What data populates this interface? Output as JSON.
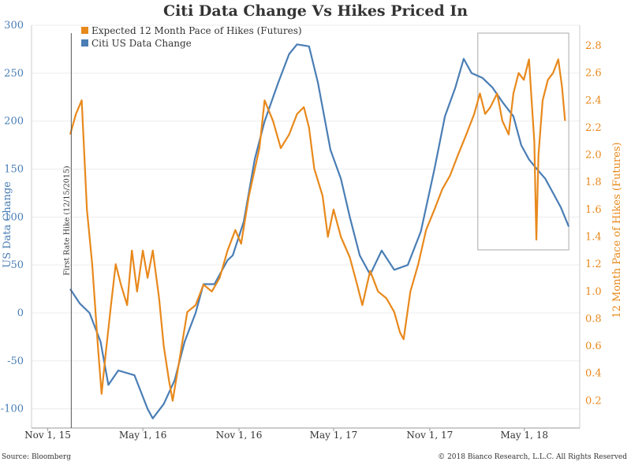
{
  "chart_data": {
    "type": "line",
    "title": "Citi Data Change Vs Hikes Priced In",
    "ylabel_left": "US Data Change",
    "ylabel_right": "12 Month Pace of Hikes (Futures)",
    "ylim_left": [
      -120,
      300
    ],
    "ylim_right": [
      0.0,
      2.95
    ],
    "yticks_left": [
      "300",
      "250",
      "200",
      "150",
      "100",
      "50",
      "0",
      "-50",
      "-100"
    ],
    "yticks_right": [
      "2.8",
      "2.6",
      "2.4",
      "2.2",
      "2.0",
      "1.8",
      "1.6",
      "1.4",
      "1.2",
      "1.0",
      "0.8",
      "0.6",
      "0.4",
      "0.2"
    ],
    "xticks": [
      "Nov 1, 15",
      "May 1, 16",
      "Nov 1, 16",
      "May 1, 17",
      "Nov 1, 17",
      "May 1, 18"
    ],
    "legend": [
      "Expected 12 Month Pace of Hikes (Futures)",
      "Citi US Data Change"
    ],
    "legend_position": "top-left",
    "annotation": "First Rate Hike (12/15/2015)",
    "highlight_box": "Feb 2018 - Jul 2018",
    "source": "Source: Bloomberg",
    "copyright": "© 2018 Bianco Research, L.L.C. All Rights Reserved",
    "colors": {
      "citi": "#4a7eb5",
      "hikes": "#e8891c",
      "text": "#333333"
    },
    "series": [
      {
        "name": "Citi US Data Change",
        "axis": "left",
        "color": "#4a7eb5",
        "points": [
          [
            "2015-12-14",
            25
          ],
          [
            "2016-01-01",
            10
          ],
          [
            "2016-01-20",
            0
          ],
          [
            "2016-02-10",
            -30
          ],
          [
            "2016-02-25",
            -75
          ],
          [
            "2016-03-15",
            -60
          ],
          [
            "2016-04-15",
            -65
          ],
          [
            "2016-05-10",
            -100
          ],
          [
            "2016-05-20",
            -110
          ],
          [
            "2016-06-10",
            -95
          ],
          [
            "2016-07-01",
            -70
          ],
          [
            "2016-07-20",
            -30
          ],
          [
            "2016-08-10",
            0
          ],
          [
            "2016-08-25",
            30
          ],
          [
            "2016-09-15",
            30
          ],
          [
            "2016-10-10",
            55
          ],
          [
            "2016-10-20",
            60
          ],
          [
            "2016-11-10",
            95
          ],
          [
            "2016-12-01",
            160
          ],
          [
            "2016-12-20",
            200
          ],
          [
            "2017-01-15",
            240
          ],
          [
            "2017-02-05",
            270
          ],
          [
            "2017-02-20",
            280
          ],
          [
            "2017-03-15",
            278
          ],
          [
            "2017-04-01",
            240
          ],
          [
            "2017-04-25",
            170
          ],
          [
            "2017-05-15",
            140
          ],
          [
            "2017-06-01",
            100
          ],
          [
            "2017-06-20",
            60
          ],
          [
            "2017-07-10",
            40
          ],
          [
            "2017-08-01",
            65
          ],
          [
            "2017-08-25",
            45
          ],
          [
            "2017-09-20",
            50
          ],
          [
            "2017-10-15",
            85
          ],
          [
            "2017-11-10",
            150
          ],
          [
            "2017-11-30",
            205
          ],
          [
            "2017-12-20",
            235
          ],
          [
            "2018-01-05",
            265
          ],
          [
            "2018-01-20",
            250
          ],
          [
            "2018-02-10",
            245
          ],
          [
            "2018-03-01",
            235
          ],
          [
            "2018-03-20",
            220
          ],
          [
            "2018-04-10",
            205
          ],
          [
            "2018-04-25",
            175
          ],
          [
            "2018-05-10",
            160
          ],
          [
            "2018-05-25",
            150
          ],
          [
            "2018-06-10",
            140
          ],
          [
            "2018-06-25",
            125
          ],
          [
            "2018-07-10",
            110
          ],
          [
            "2018-07-25",
            90
          ]
        ]
      },
      {
        "name": "Expected 12 Month Pace of Hikes (Futures)",
        "axis": "right",
        "color": "#e8891c",
        "points": [
          [
            "2015-12-14",
            2.15
          ],
          [
            "2015-12-25",
            2.3
          ],
          [
            "2016-01-05",
            2.4
          ],
          [
            "2016-01-15",
            1.6
          ],
          [
            "2016-01-25",
            1.2
          ],
          [
            "2016-02-05",
            0.6
          ],
          [
            "2016-02-12",
            0.25
          ],
          [
            "2016-02-20",
            0.55
          ],
          [
            "2016-03-01",
            0.9
          ],
          [
            "2016-03-10",
            1.2
          ],
          [
            "2016-03-20",
            1.05
          ],
          [
            "2016-04-01",
            0.9
          ],
          [
            "2016-04-10",
            1.3
          ],
          [
            "2016-04-20",
            1.0
          ],
          [
            "2016-05-01",
            1.3
          ],
          [
            "2016-05-10",
            1.1
          ],
          [
            "2016-05-20",
            1.3
          ],
          [
            "2016-06-01",
            0.95
          ],
          [
            "2016-06-10",
            0.6
          ],
          [
            "2016-06-20",
            0.35
          ],
          [
            "2016-06-27",
            0.2
          ],
          [
            "2016-07-10",
            0.5
          ],
          [
            "2016-07-25",
            0.85
          ],
          [
            "2016-08-10",
            0.9
          ],
          [
            "2016-08-25",
            1.05
          ],
          [
            "2016-09-10",
            1.0
          ],
          [
            "2016-09-25",
            1.1
          ],
          [
            "2016-10-10",
            1.3
          ],
          [
            "2016-10-25",
            1.45
          ],
          [
            "2016-11-05",
            1.35
          ],
          [
            "2016-11-20",
            1.7
          ],
          [
            "2016-12-10",
            2.05
          ],
          [
            "2016-12-20",
            2.4
          ],
          [
            "2017-01-05",
            2.25
          ],
          [
            "2017-01-20",
            2.05
          ],
          [
            "2017-02-05",
            2.15
          ],
          [
            "2017-02-20",
            2.3
          ],
          [
            "2017-03-05",
            2.35
          ],
          [
            "2017-03-15",
            2.2
          ],
          [
            "2017-03-25",
            1.9
          ],
          [
            "2017-04-10",
            1.7
          ],
          [
            "2017-04-20",
            1.4
          ],
          [
            "2017-05-01",
            1.6
          ],
          [
            "2017-05-15",
            1.4
          ],
          [
            "2017-06-01",
            1.25
          ],
          [
            "2017-06-15",
            1.05
          ],
          [
            "2017-06-25",
            0.9
          ],
          [
            "2017-07-10",
            1.15
          ],
          [
            "2017-07-25",
            1.0
          ],
          [
            "2017-08-10",
            0.95
          ],
          [
            "2017-08-25",
            0.85
          ],
          [
            "2017-09-05",
            0.7
          ],
          [
            "2017-09-12",
            0.65
          ],
          [
            "2017-09-25",
            1.0
          ],
          [
            "2017-10-10",
            1.2
          ],
          [
            "2017-10-25",
            1.45
          ],
          [
            "2017-11-10",
            1.6
          ],
          [
            "2017-11-25",
            1.75
          ],
          [
            "2017-12-10",
            1.85
          ],
          [
            "2017-12-25",
            2.0
          ],
          [
            "2018-01-10",
            2.15
          ],
          [
            "2018-01-25",
            2.3
          ],
          [
            "2018-02-05",
            2.45
          ],
          [
            "2018-02-15",
            2.3
          ],
          [
            "2018-02-25",
            2.35
          ],
          [
            "2018-03-10",
            2.45
          ],
          [
            "2018-03-20",
            2.25
          ],
          [
            "2018-04-01",
            2.15
          ],
          [
            "2018-04-10",
            2.45
          ],
          [
            "2018-04-20",
            2.6
          ],
          [
            "2018-04-30",
            2.55
          ],
          [
            "2018-05-10",
            2.7
          ],
          [
            "2018-05-15",
            2.4
          ],
          [
            "2018-05-20",
            2.1
          ],
          [
            "2018-05-24",
            1.38
          ],
          [
            "2018-05-28",
            2.0
          ],
          [
            "2018-06-05",
            2.4
          ],
          [
            "2018-06-15",
            2.55
          ],
          [
            "2018-06-25",
            2.6
          ],
          [
            "2018-07-05",
            2.7
          ],
          [
            "2018-07-12",
            2.5
          ],
          [
            "2018-07-18",
            2.25
          ]
        ]
      }
    ]
  }
}
